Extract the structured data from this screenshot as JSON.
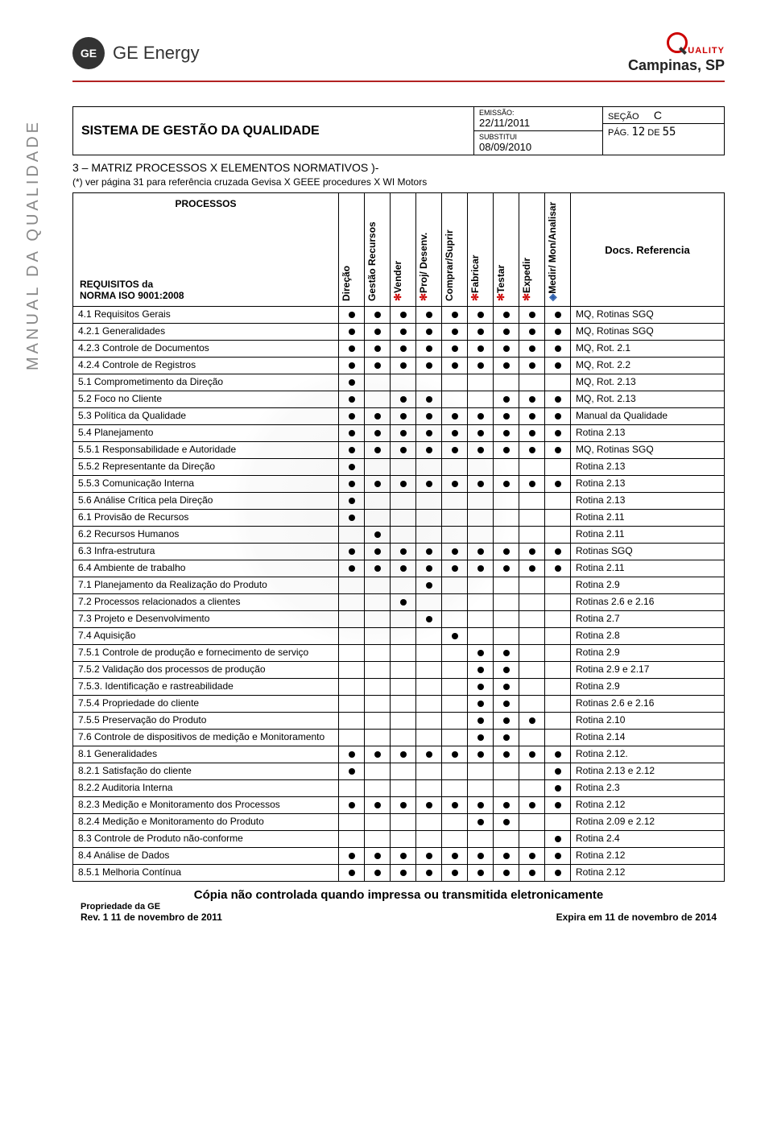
{
  "brand": {
    "logo_text": "GE",
    "name": "GE Energy",
    "quality_word": "UALITY",
    "location": "Campinas, SP"
  },
  "side_label": "MANUAL DA QUALIDADE",
  "info": {
    "title": "SISTEMA DE GESTÃO DA QUALIDADE",
    "emissao_label": "EMISSÃO:",
    "emissao": "22/11/2011",
    "substitui_label": "SUBSTITUI",
    "substitui": "08/09/2010",
    "secao_label": "SEÇÃO",
    "secao": "C",
    "pag_label": "PÁG.",
    "pag_cur": "12",
    "pag_de": "DE",
    "pag_total": "55"
  },
  "section": {
    "title": "3 – MATRIZ PROCESSOS X ELEMENTOS NORMATIVOS )-",
    "note": "(*) ver página 31 para referência cruzada Gevisa X GEEE procedures X WI Motors"
  },
  "matrix_header": {
    "processos": "PROCESSOS",
    "requisitos": "REQUISITOS da\nNORMA ISO 9001:2008",
    "docs_ref": "Docs. Referencia",
    "columns": [
      {
        "label": "Direção",
        "marker": ""
      },
      {
        "label": "Gestão Recursos",
        "marker": ""
      },
      {
        "label": "Vender",
        "marker": "✻",
        "marker_color": "#c00"
      },
      {
        "label": "Proj/ Desenv.",
        "marker": "✻",
        "marker_color": "#c00"
      },
      {
        "label": "Comprar/Suprir",
        "marker": ""
      },
      {
        "label": "Fabricar",
        "marker": "✻",
        "marker_color": "#c00"
      },
      {
        "label": "Testar",
        "marker": "✻",
        "marker_color": "#c00"
      },
      {
        "label": "Expedir",
        "marker": "✻",
        "marker_color": "#c00"
      },
      {
        "label": "Medir/ Mon/Analisar",
        "marker": "◈",
        "marker_color": "#2a5caa"
      }
    ]
  },
  "rows": [
    {
      "req": "4.1 Requisitos Gerais",
      "d": [
        1,
        1,
        1,
        1,
        1,
        1,
        1,
        1,
        1
      ],
      "ref": "MQ, Rotinas SGQ"
    },
    {
      "req": "4.2.1 Generalidades",
      "d": [
        1,
        1,
        1,
        1,
        1,
        1,
        1,
        1,
        1
      ],
      "ref": "MQ, Rotinas SGQ"
    },
    {
      "req": "4.2.3 Controle de Documentos",
      "d": [
        1,
        1,
        1,
        1,
        1,
        1,
        1,
        1,
        1
      ],
      "ref": "MQ, Rot. 2.1"
    },
    {
      "req": "4.2.4 Controle de Registros",
      "d": [
        1,
        1,
        1,
        1,
        1,
        1,
        1,
        1,
        1
      ],
      "ref": "MQ, Rot. 2.2"
    },
    {
      "req": "5.1 Comprometimento da Direção",
      "d": [
        1,
        0,
        0,
        0,
        0,
        0,
        0,
        0,
        0
      ],
      "ref": "MQ, Rot. 2.13"
    },
    {
      "req": "5.2 Foco no Cliente",
      "d": [
        1,
        0,
        1,
        1,
        0,
        0,
        1,
        1,
        1
      ],
      "ref": "MQ, Rot. 2.13"
    },
    {
      "req": "5.3 Política da Qualidade",
      "d": [
        1,
        1,
        1,
        1,
        1,
        1,
        1,
        1,
        1
      ],
      "ref": "Manual da Qualidade"
    },
    {
      "req": "5.4 Planejamento",
      "d": [
        1,
        1,
        1,
        1,
        1,
        1,
        1,
        1,
        1
      ],
      "ref": "Rotina 2.13"
    },
    {
      "req": "5.5.1 Responsabilidade e Autoridade",
      "d": [
        1,
        1,
        1,
        1,
        1,
        1,
        1,
        1,
        1
      ],
      "ref": "MQ, Rotinas SGQ"
    },
    {
      "req": "5.5.2 Representante da Direção",
      "d": [
        1,
        0,
        0,
        0,
        0,
        0,
        0,
        0,
        0
      ],
      "ref": "Rotina 2.13"
    },
    {
      "req": "5.5.3 Comunicação Interna",
      "d": [
        1,
        1,
        1,
        1,
        1,
        1,
        1,
        1,
        1
      ],
      "ref": "Rotina 2.13"
    },
    {
      "req": "5.6 Análise Crítica pela Direção",
      "d": [
        1,
        0,
        0,
        0,
        0,
        0,
        0,
        0,
        0
      ],
      "ref": "Rotina 2.13"
    },
    {
      "req": "6.1 Provisão de Recursos",
      "d": [
        1,
        0,
        0,
        0,
        0,
        0,
        0,
        0,
        0
      ],
      "ref": "Rotina 2.11"
    },
    {
      "req": "6.2 Recursos Humanos",
      "d": [
        0,
        1,
        0,
        0,
        0,
        0,
        0,
        0,
        0
      ],
      "ref": "Rotina 2.11"
    },
    {
      "req": "6.3 Infra-estrutura",
      "d": [
        1,
        1,
        1,
        1,
        1,
        1,
        1,
        1,
        1
      ],
      "ref": "Rotinas SGQ"
    },
    {
      "req": "6.4 Ambiente de trabalho",
      "d": [
        1,
        1,
        1,
        1,
        1,
        1,
        1,
        1,
        1
      ],
      "ref": "Rotina 2.11"
    },
    {
      "req": "7.1 Planejamento da Realização do Produto",
      "d": [
        0,
        0,
        0,
        1,
        0,
        0,
        0,
        0,
        0
      ],
      "ref": "Rotina 2.9"
    },
    {
      "req": "7.2 Processos relacionados a clientes",
      "d": [
        0,
        0,
        1,
        0,
        0,
        0,
        0,
        0,
        0
      ],
      "ref": "Rotinas 2.6 e 2.16"
    },
    {
      "req": "7.3 Projeto e Desenvolvimento",
      "d": [
        0,
        0,
        0,
        1,
        0,
        0,
        0,
        0,
        0
      ],
      "ref": "Rotina 2.7"
    },
    {
      "req": "7.4 Aquisição",
      "d": [
        0,
        0,
        0,
        0,
        1,
        0,
        0,
        0,
        0
      ],
      "ref": "Rotina 2.8"
    },
    {
      "req": "7.5.1 Controle de produção e fornecimento de serviço",
      "d": [
        0,
        0,
        0,
        0,
        0,
        1,
        1,
        0,
        0
      ],
      "ref": "Rotina 2.9"
    },
    {
      "req": "7.5.2 Validação dos processos de produção",
      "d": [
        0,
        0,
        0,
        0,
        0,
        1,
        1,
        0,
        0
      ],
      "ref": "Rotina 2.9 e 2.17"
    },
    {
      "req": "7.5.3. Identificação e rastreabilidade",
      "d": [
        0,
        0,
        0,
        0,
        0,
        1,
        1,
        0,
        0
      ],
      "ref": "Rotina 2.9"
    },
    {
      "req": "7.5.4 Propriedade do cliente",
      "d": [
        0,
        0,
        0,
        0,
        0,
        1,
        1,
        0,
        0
      ],
      "ref": "Rotinas 2.6 e 2.16"
    },
    {
      "req": "7.5.5 Preservação do Produto",
      "d": [
        0,
        0,
        0,
        0,
        0,
        1,
        1,
        1,
        0
      ],
      "ref": "Rotina 2.10"
    },
    {
      "req": "7.6 Controle de dispositivos de medição e Monitoramento",
      "d": [
        0,
        0,
        0,
        0,
        0,
        1,
        1,
        0,
        0
      ],
      "ref": "Rotina 2.14"
    },
    {
      "req": "8.1 Generalidades",
      "d": [
        1,
        1,
        1,
        1,
        1,
        1,
        1,
        1,
        1
      ],
      "ref": "Rotina 2.12."
    },
    {
      "req": "8.2.1 Satisfação do cliente",
      "d": [
        1,
        0,
        0,
        0,
        0,
        0,
        0,
        0,
        1
      ],
      "ref": "Rotina 2.13 e 2.12"
    },
    {
      "req": "8.2.2 Auditoria Interna",
      "d": [
        0,
        0,
        0,
        0,
        0,
        0,
        0,
        0,
        1
      ],
      "ref": "Rotina 2.3"
    },
    {
      "req": "8.2.3 Medição e Monitoramento dos Processos",
      "d": [
        1,
        1,
        1,
        1,
        1,
        1,
        1,
        1,
        1
      ],
      "ref": "Rotina 2.12"
    },
    {
      "req": "8.2.4 Medição e Monitoramento do Produto",
      "d": [
        0,
        0,
        0,
        0,
        0,
        1,
        1,
        0,
        0
      ],
      "ref": "Rotina 2.09 e 2.12"
    },
    {
      "req": "8.3 Controle de Produto não-conforme",
      "d": [
        0,
        0,
        0,
        0,
        0,
        0,
        0,
        0,
        1
      ],
      "ref": "Rotina 2.4"
    },
    {
      "req": "8.4 Análise de Dados",
      "d": [
        1,
        1,
        1,
        1,
        1,
        1,
        1,
        1,
        1
      ],
      "ref": "Rotina 2.12"
    },
    {
      "req": "8.5.1 Melhoria Contínua",
      "d": [
        1,
        1,
        1,
        1,
        1,
        1,
        1,
        1,
        1
      ],
      "ref": "Rotina 2.12"
    }
  ],
  "footer": {
    "warning": "Cópia não controlada quando impressa ou transmitida eletronicamente",
    "proprietary": "Propriedade da GE",
    "rev": "Rev. 1 11 de novembro de 2011",
    "expira": "Expira em 11 de novembro de 2014"
  },
  "colors": {
    "accent_red": "#b22222",
    "text": "#000000",
    "marker_red": "#c00000",
    "marker_blue": "#2a5caa"
  }
}
